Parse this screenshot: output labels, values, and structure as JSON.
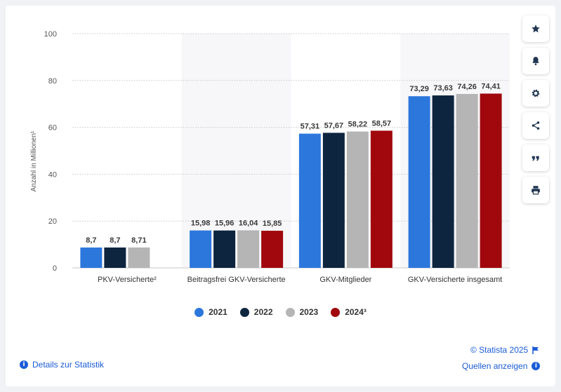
{
  "chart_data": {
    "type": "bar",
    "ylabel": "Anzahl in Millionen¹",
    "ylim": [
      0,
      100
    ],
    "yticks": [
      0,
      20,
      40,
      60,
      80,
      100
    ],
    "categories": [
      "PKV-Versicherte²",
      "Beitragsfrei GKV-Versicherte",
      "GKV-Mitglieder",
      "GKV-Versicherte insgesamt"
    ],
    "series": [
      {
        "name": "2021",
        "color": "#2c77dc",
        "values": [
          8.7,
          15.98,
          57.31,
          73.29
        ],
        "labels": [
          "8,7",
          "15,98",
          "57,31",
          "73,29"
        ]
      },
      {
        "name": "2022",
        "color": "#0e253f",
        "values": [
          8.7,
          15.96,
          57.67,
          73.63
        ],
        "labels": [
          "8,7",
          "15,96",
          "57,67",
          "73,63"
        ]
      },
      {
        "name": "2023",
        "color": "#b5b5b5",
        "values": [
          8.71,
          16.04,
          58.22,
          74.26
        ],
        "labels": [
          "8,71",
          "16,04",
          "58,22",
          "74,26"
        ]
      },
      {
        "name": "2024³",
        "color": "#a0080d",
        "values": [
          null,
          15.85,
          58.57,
          74.41
        ],
        "labels": [
          null,
          "15,85",
          "58,57",
          "74,41"
        ]
      }
    ]
  },
  "toolbar": {
    "icons": [
      "star-icon",
      "bell-icon",
      "gear-icon",
      "share-icon",
      "quote-icon",
      "print-icon"
    ]
  },
  "footer": {
    "copyright": "© Statista 2025",
    "details": "Details zur Statistik",
    "sources": "Quellen anzeigen"
  }
}
